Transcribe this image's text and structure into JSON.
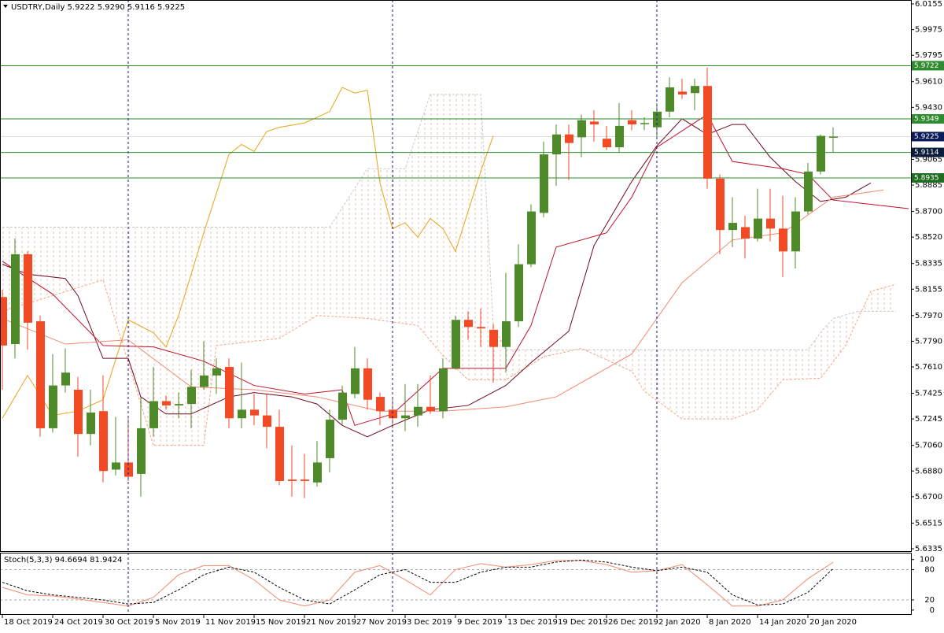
{
  "chart_data": {
    "type": "candlestick",
    "title": "USDTRY,Daily 5.9222 5.9290 5.9116 5.9225",
    "categories": [
      "18 Oct 2019",
      null,
      null,
      null,
      "24 Oct 2019",
      null,
      null,
      null,
      "30 Oct 2019",
      null,
      null,
      null,
      "5 Nov 2019",
      null,
      null,
      null,
      "11 Nov 2019",
      null,
      null,
      null,
      "15 Nov 2019",
      null,
      null,
      null,
      "21 Nov 2019",
      null,
      null,
      null,
      "27 Nov 2019",
      null,
      null,
      null,
      "3 Dec 2019",
      null,
      null,
      null,
      "9 Dec 2019",
      null,
      null,
      null,
      "13 Dec 2019",
      null,
      null,
      null,
      "19 Dec 2019",
      null,
      null,
      null,
      "26 Dec 2019",
      null,
      null,
      null,
      "2 Jan 2020",
      null,
      null,
      null,
      "8 Jan 2020",
      null,
      null,
      null,
      "14 Jan 2020",
      null,
      null,
      null,
      "20 Jan 2020",
      null,
      null
    ],
    "open": [
      5.81,
      5.777,
      5.84,
      5.793,
      5.718,
      5.748,
      5.745,
      5.714,
      5.73,
      5.689,
      5.694,
      5.686,
      5.718,
      5.737,
      5.734,
      5.735,
      5.747,
      5.755,
      5.761,
      5.725,
      5.731,
      5.727,
      5.719,
      5.682,
      5.682,
      5.68,
      5.697,
      5.724,
      5.742,
      5.76,
      5.74,
      5.731,
      5.725,
      5.727,
      5.733,
      5.73,
      5.76,
      5.794,
      5.789,
      5.787,
      5.775,
      5.793,
      5.833,
      5.869,
      5.91,
      5.924,
      5.922,
      5.933,
      5.921,
      5.915,
      5.934,
      5.932,
      5.929,
      5.94,
      5.954,
      5.953,
      5.958,
      5.893,
      5.857,
      5.859,
      5.851,
      5.865,
      5.858,
      5.842,
      5.87,
      5.898,
      5.9222
    ],
    "high": [
      5.815,
      5.851,
      5.842,
      5.797,
      5.77,
      5.774,
      5.754,
      5.745,
      5.755,
      5.726,
      5.725,
      5.74,
      5.761,
      5.741,
      5.743,
      5.759,
      5.779,
      5.767,
      5.767,
      5.764,
      5.742,
      5.742,
      5.731,
      5.706,
      5.7,
      5.709,
      5.731,
      5.748,
      5.775,
      5.767,
      5.743,
      5.739,
      5.749,
      5.749,
      5.755,
      5.767,
      5.797,
      5.8,
      5.802,
      5.791,
      5.827,
      5.847,
      5.875,
      5.919,
      5.931,
      5.931,
      5.938,
      5.941,
      5.93,
      5.946,
      5.941,
      5.936,
      5.946,
      5.964,
      5.963,
      5.963,
      5.971,
      5.896,
      5.88,
      5.867,
      5.886,
      5.886,
      5.881,
      5.88,
      5.904,
      5.924,
      5.929
    ],
    "low": [
      5.745,
      5.767,
      5.773,
      5.712,
      5.715,
      5.743,
      5.698,
      5.706,
      5.68,
      5.685,
      5.681,
      5.67,
      5.712,
      5.731,
      5.725,
      5.718,
      5.745,
      5.742,
      5.718,
      5.718,
      5.72,
      5.704,
      5.678,
      5.67,
      5.669,
      5.677,
      5.687,
      5.72,
      5.739,
      5.731,
      5.72,
      5.718,
      5.716,
      5.719,
      5.728,
      5.725,
      5.759,
      5.78,
      5.775,
      5.75,
      5.757,
      5.789,
      5.831,
      5.866,
      5.888,
      5.892,
      5.908,
      5.919,
      5.913,
      5.911,
      5.927,
      5.927,
      5.922,
      5.936,
      5.949,
      5.941,
      5.886,
      5.84,
      5.845,
      5.837,
      5.849,
      5.849,
      5.824,
      5.83,
      5.868,
      5.896,
      5.9116
    ],
    "close": [
      5.776,
      5.84,
      5.792,
      5.718,
      5.748,
      5.757,
      5.714,
      5.729,
      5.688,
      5.694,
      5.684,
      5.718,
      5.737,
      5.734,
      5.735,
      5.747,
      5.755,
      5.76,
      5.725,
      5.731,
      5.727,
      5.719,
      5.681,
      5.681,
      5.681,
      5.694,
      5.724,
      5.743,
      5.76,
      5.738,
      5.73,
      5.725,
      5.727,
      5.733,
      5.73,
      5.76,
      5.794,
      5.789,
      5.788,
      5.775,
      5.793,
      5.833,
      5.87,
      5.91,
      5.924,
      5.918,
      5.934,
      5.931,
      5.915,
      5.93,
      5.931,
      5.932,
      5.94,
      5.957,
      5.952,
      5.958,
      5.893,
      5.857,
      5.862,
      5.851,
      5.865,
      5.858,
      5.842,
      5.87,
      5.898,
      5.923,
      5.9225
    ],
    "up_color": "#4f8a2a",
    "down_color": "#f24a24",
    "ylim": [
      5.6335,
      6.0155
    ],
    "yticks": [
      6.0155,
      5.9975,
      {
        "value": 5.9795,
        "label": "5.9795"
      },
      {
        "value": 5.961,
        "label": "5.9610"
      },
      {
        "value": 5.943,
        "label": "5.9430"
      },
      5.9065,
      5.8885,
      {
        "value": 5.87,
        "label": "5.8700"
      },
      {
        "value": 5.852,
        "label": "5.8520"
      },
      5.8335,
      5.8155,
      {
        "value": 5.797,
        "label": "5.7970"
      },
      {
        "value": 5.779,
        "label": "5.7790"
      },
      {
        "value": 5.761,
        "label": "5.7610"
      },
      5.7425,
      5.7245,
      {
        "value": 5.706,
        "label": "5.7060"
      },
      {
        "value": 5.688,
        "label": "5.6880"
      },
      {
        "value": 5.67,
        "label": "5.6700"
      },
      5.6515,
      5.6335
    ],
    "levels": [
      {
        "value": 5.9722,
        "color": "#2e8b2e"
      },
      {
        "value": 5.9349,
        "color": "#2e8b2e"
      },
      {
        "value": 5.9114,
        "color": "#0b1b3a"
      },
      {
        "value": 5.8935,
        "color": "#1f6b1f"
      }
    ],
    "level_line_color": "#2e8b2e",
    "last_price": 5.9225,
    "last_price_color": "#0b1b5a",
    "lines": [
      {
        "color": "#e8a317",
        "x": [
          0,
          2,
          4,
          6,
          8,
          10,
          12,
          13,
          14,
          16,
          18,
          19,
          20,
          21,
          22,
          24,
          26,
          27,
          28,
          29,
          30,
          31,
          32,
          33,
          34,
          35,
          36,
          37,
          38,
          39
        ],
        "values": [
          5.725,
          5.755,
          5.727,
          5.73,
          5.738,
          5.794,
          5.785,
          5.775,
          5.797,
          5.855,
          5.91,
          5.917,
          5.912,
          5.926,
          5.929,
          5.932,
          5.94,
          5.957,
          5.953,
          5.955,
          5.89,
          5.858,
          5.862,
          5.852,
          5.865,
          5.858,
          5.842,
          5.87,
          5.898,
          5.923
        ]
      },
      {
        "color": "#6e0a1e",
        "x": [
          0,
          2,
          5,
          6,
          8,
          10,
          11,
          13,
          15,
          18,
          20,
          23,
          25,
          27,
          29,
          31,
          34,
          37,
          40,
          42,
          45,
          47,
          50,
          52,
          54,
          56,
          58,
          59,
          61,
          63,
          65,
          67,
          69
        ],
        "values": [
          5.833,
          5.826,
          5.823,
          5.811,
          5.767,
          5.767,
          5.74,
          5.728,
          5.728,
          5.74,
          5.743,
          5.74,
          5.735,
          5.72,
          5.712,
          5.72,
          5.731,
          5.734,
          5.748,
          5.764,
          5.786,
          5.846,
          5.891,
          5.916,
          5.935,
          5.924,
          5.931,
          5.931,
          5.908,
          5.891,
          5.877,
          5.88,
          5.89
        ]
      },
      {
        "color": "#c0102a",
        "x": [
          0,
          4,
          8,
          12,
          16,
          20,
          24,
          27,
          28,
          31,
          35,
          40,
          42,
          44,
          48,
          50,
          52,
          56,
          58,
          62,
          64,
          66,
          70,
          72
        ],
        "values": [
          5.835,
          5.812,
          5.776,
          5.775,
          5.765,
          5.748,
          5.742,
          5.745,
          5.72,
          5.728,
          5.76,
          5.76,
          5.79,
          5.845,
          5.855,
          5.88,
          5.915,
          5.938,
          5.905,
          5.9,
          5.896,
          5.878,
          5.874,
          5.872
        ]
      },
      {
        "color": "#f08a70",
        "x": [
          0,
          5,
          10,
          15,
          20,
          25,
          30,
          35,
          40,
          44,
          48,
          50,
          54,
          58,
          62,
          66,
          70
        ],
        "values": [
          5.795,
          5.777,
          5.78,
          5.747,
          5.745,
          5.74,
          5.73,
          5.73,
          5.733,
          5.74,
          5.76,
          5.77,
          5.82,
          5.85,
          5.855,
          5.88,
          5.885
        ]
      }
    ],
    "cloud": {
      "hatch_color": "#e6c4b4",
      "span_a": {
        "color": "#f4a582",
        "x": [
          0,
          8,
          12,
          16,
          17,
          22,
          25,
          29,
          33,
          35,
          37,
          40,
          43,
          46,
          50,
          51,
          54,
          58,
          60,
          62,
          65,
          67,
          69,
          71
        ],
        "values": [
          5.8,
          5.822,
          5.706,
          5.706,
          5.776,
          5.781,
          5.797,
          5.795,
          5.79,
          5.769,
          5.752,
          5.752,
          5.768,
          5.774,
          5.758,
          5.744,
          5.7245,
          5.7245,
          5.731,
          5.752,
          5.753,
          5.776,
          5.814,
          5.819
        ]
      },
      "span_b": {
        "color": "#c8c8c8",
        "x": [
          0,
          26,
          29,
          32,
          34,
          38,
          39,
          40,
          64,
          65,
          66,
          68,
          71
        ],
        "values": [
          5.859,
          5.859,
          5.9,
          5.9,
          5.952,
          5.952,
          5.79,
          5.773,
          5.773,
          5.785,
          5.795,
          5.8,
          5.8
        ]
      }
    },
    "stochastic": {
      "title": "Stoch(5,3,3) 94.6694 81.9424",
      "ylim": [
        -8,
        112
      ],
      "yticks": [
        100,
        80,
        20,
        0
      ],
      "levels": [
        20,
        80
      ],
      "x": [
        0,
        2,
        4,
        6,
        8,
        10,
        12,
        14,
        16,
        18,
        20,
        22,
        24,
        26,
        28,
        30,
        32,
        34,
        36,
        38,
        40,
        42,
        44,
        46,
        48,
        50,
        52,
        54,
        56,
        58,
        60,
        62,
        64,
        66
      ],
      "k": {
        "color": "#f08a70",
        "values": [
          45,
          30,
          28,
          22,
          15,
          8,
          25,
          70,
          88,
          88,
          60,
          20,
          8,
          20,
          75,
          88,
          60,
          30,
          80,
          92,
          85,
          90,
          98,
          98,
          90,
          75,
          78,
          90,
          50,
          8,
          8,
          20,
          62,
          94.6694
        ]
      },
      "d": {
        "color": "#000000",
        "values": [
          55,
          38,
          30,
          25,
          20,
          12,
          15,
          40,
          70,
          85,
          75,
          45,
          20,
          12,
          40,
          70,
          80,
          55,
          55,
          75,
          85,
          85,
          95,
          99,
          95,
          85,
          78,
          85,
          75,
          30,
          10,
          12,
          35,
          81.9424
        ]
      }
    }
  }
}
